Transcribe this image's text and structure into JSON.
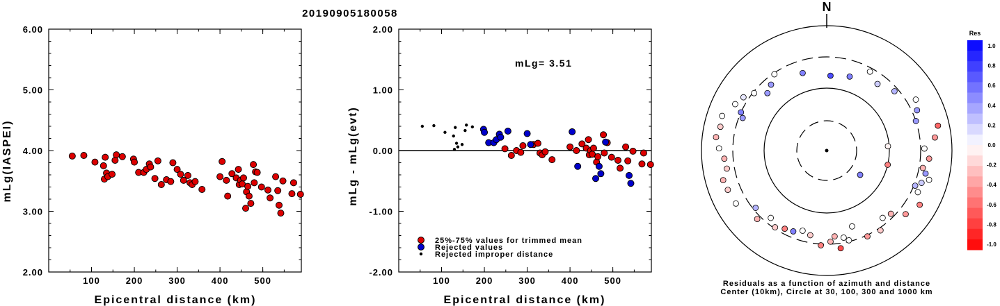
{
  "title": "20190905180058",
  "chart_data": [
    {
      "type": "scatter",
      "ylabel": "mLg(IASPEI)",
      "xlabel": "Epicentral distance (km)",
      "xlim": [
        0,
        590
      ],
      "ylim": [
        2.0,
        6.0
      ],
      "xticks": [
        "100",
        "200",
        "300",
        "400",
        "500"
      ],
      "yticks": [
        "2.00",
        "3.00",
        "4.00",
        "5.00",
        "6.00"
      ],
      "series": [
        {
          "color": "#dd0000",
          "points": [
            [
              55,
              3.91
            ],
            [
              82,
              3.92
            ],
            [
              108,
              3.81
            ],
            [
              128,
              3.75
            ],
            [
              130,
              3.53
            ],
            [
              132,
              3.89
            ],
            [
              135,
              3.63
            ],
            [
              138,
              3.57
            ],
            [
              148,
              3.61
            ],
            [
              155,
              3.84
            ],
            [
              158,
              3.93
            ],
            [
              172,
              3.9
            ],
            [
              198,
              3.86
            ],
            [
              200,
              3.81
            ],
            [
              210,
              3.64
            ],
            [
              222,
              3.64
            ],
            [
              228,
              3.69
            ],
            [
              235,
              3.78
            ],
            [
              238,
              3.73
            ],
            [
              248,
              3.54
            ],
            [
              255,
              3.83
            ],
            [
              263,
              3.44
            ],
            [
              275,
              3.52
            ],
            [
              285,
              3.49
            ],
            [
              290,
              3.8
            ],
            [
              300,
              3.69
            ],
            [
              308,
              3.61
            ],
            [
              315,
              3.51
            ],
            [
              325,
              3.59
            ],
            [
              330,
              3.47
            ],
            [
              335,
              3.44
            ],
            [
              342,
              3.49
            ],
            [
              358,
              3.36
            ],
            [
              400,
              3.57
            ],
            [
              405,
              3.82
            ],
            [
              415,
              3.51
            ],
            [
              418,
              3.25
            ],
            [
              428,
              3.62
            ],
            [
              438,
              3.55
            ],
            [
              443,
              3.69
            ],
            [
              445,
              3.44
            ],
            [
              448,
              3.51
            ],
            [
              452,
              3.45
            ],
            [
              455,
              3.55
            ],
            [
              460,
              3.05
            ],
            [
              462,
              3.32
            ],
            [
              465,
              3.41
            ],
            [
              468,
              3.25
            ],
            [
              472,
              3.13
            ],
            [
              478,
              3.77
            ],
            [
              480,
              3.47
            ],
            [
              483,
              3.65
            ],
            [
              487,
              3.64
            ],
            [
              497,
              3.4
            ],
            [
              512,
              3.35
            ],
            [
              517,
              3.22
            ],
            [
              530,
              3.57
            ],
            [
              535,
              3.34
            ],
            [
              538,
              3.1
            ],
            [
              542,
              2.97
            ],
            [
              547,
              3.5
            ],
            [
              568,
              3.29
            ],
            [
              572,
              3.47
            ],
            [
              588,
              3.28
            ]
          ]
        }
      ]
    },
    {
      "type": "scatter",
      "ylabel": "mLg - mLg(evt)",
      "xlabel": "Epicentral distance (km)",
      "xlim": [
        0,
        590
      ],
      "ylim": [
        -2.0,
        2.0
      ],
      "xticks": [
        "100",
        "200",
        "300",
        "400",
        "500"
      ],
      "yticks": [
        "-2.00",
        "-1.00",
        "0.00",
        "1.00",
        "2.00"
      ],
      "annotation": "mLg= 3.51",
      "series": [
        {
          "name": "25%-75% values for trimmed mean",
          "color": "#dd0000",
          "points": [
            [
              248,
              0.03
            ],
            [
              263,
              -0.08
            ],
            [
              275,
              0.0
            ],
            [
              285,
              -0.03
            ],
            [
              290,
              0.08
            ],
            [
              315,
              0.1
            ],
            [
              325,
              0.12
            ],
            [
              330,
              -0.04
            ],
            [
              335,
              -0.07
            ],
            [
              342,
              -0.02
            ],
            [
              358,
              -0.15
            ],
            [
              400,
              0.06
            ],
            [
              415,
              0.0
            ],
            [
              428,
              0.11
            ],
            [
              438,
              0.04
            ],
            [
              443,
              0.18
            ],
            [
              445,
              -0.07
            ],
            [
              448,
              0.0
            ],
            [
              452,
              -0.06
            ],
            [
              455,
              0.04
            ],
            [
              462,
              -0.19
            ],
            [
              465,
              -0.1
            ],
            [
              478,
              0.26
            ],
            [
              480,
              -0.04
            ],
            [
              487,
              0.13
            ],
            [
              497,
              -0.11
            ],
            [
              512,
              -0.16
            ],
            [
              517,
              -0.29
            ],
            [
              530,
              0.06
            ],
            [
              535,
              -0.17
            ],
            [
              547,
              -0.01
            ],
            [
              568,
              -0.22
            ],
            [
              572,
              -0.04
            ],
            [
              588,
              -0.23
            ]
          ]
        },
        {
          "name": "Rejected values",
          "color": "#0000cc",
          "points": [
            [
              198,
              0.35
            ],
            [
              200,
              0.3
            ],
            [
              210,
              0.13
            ],
            [
              222,
              0.13
            ],
            [
              228,
              0.18
            ],
            [
              235,
              0.27
            ],
            [
              238,
              0.22
            ],
            [
              255,
              0.32
            ],
            [
              300,
              0.28
            ],
            [
              308,
              0.1
            ],
            [
              405,
              0.31
            ],
            [
              418,
              -0.26
            ],
            [
              460,
              -0.46
            ],
            [
              468,
              -0.26
            ],
            [
              472,
              -0.38
            ],
            [
              483,
              0.14
            ],
            [
              538,
              -0.41
            ],
            [
              542,
              -0.54
            ]
          ]
        },
        {
          "name": "Rejected improper distance",
          "color": "#000000",
          "points": [
            [
              55,
              0.4
            ],
            [
              82,
              0.41
            ],
            [
              108,
              0.3
            ],
            [
              128,
              0.24
            ],
            [
              130,
              0.02
            ],
            [
              132,
              0.38
            ],
            [
              135,
              0.12
            ],
            [
              138,
              0.06
            ],
            [
              148,
              0.1
            ],
            [
              155,
              0.33
            ],
            [
              158,
              0.42
            ],
            [
              172,
              0.39
            ]
          ]
        }
      ],
      "legend": "bottom-left"
    }
  ],
  "polar": {
    "north_label": "N",
    "caption_line1": "Residuals as a function of azimuth and distance",
    "caption_line2": "Center (10km), Circle at 30, 100, 300 and 1000 km",
    "stations": [
      [
        0.05,
        0.6,
        0.7
      ],
      [
        1.5,
        0.49,
        -0.05
      ],
      [
        1.8,
        0.5,
        -0.5
      ],
      [
        2.2,
        0.33,
        0.5
      ],
      [
        -0.3,
        0.65,
        0.5
      ],
      [
        -0.6,
        0.74,
        0.0
      ],
      [
        -0.7,
        0.69,
        0.4
      ],
      [
        -0.8,
        0.66,
        0.4
      ],
      [
        -0.9,
        0.74,
        0.0
      ],
      [
        -1.0,
        0.79,
        0.1
      ],
      [
        -1.1,
        0.82,
        0.0
      ],
      [
        -1.15,
        0.75,
        0.5
      ],
      [
        -1.2,
        0.72,
        0.4
      ],
      [
        -1.25,
        0.88,
        0.0
      ],
      [
        -1.35,
        0.87,
        -0.2
      ],
      [
        -1.45,
        0.89,
        -0.3
      ],
      [
        -1.55,
        0.86,
        0.0
      ],
      [
        -1.65,
        0.82,
        -0.3
      ],
      [
        -1.75,
        0.81,
        -0.2
      ],
      [
        -1.85,
        0.86,
        -0.3
      ],
      [
        -1.95,
        0.85,
        -0.2
      ],
      [
        -2.1,
        0.84,
        0.0
      ],
      [
        -2.25,
        0.73,
        0.3
      ],
      [
        -2.35,
        0.78,
        -0.3
      ],
      [
        -2.45,
        0.7,
        0.0
      ],
      [
        -2.55,
        0.74,
        -0.2
      ],
      [
        -2.65,
        0.71,
        -0.5
      ],
      [
        -2.75,
        0.7,
        0.5
      ],
      [
        -2.85,
        0.67,
        0.0
      ],
      [
        -2.95,
        0.69,
        -0.2
      ],
      [
        3.1,
        0.73,
        -0.3
      ],
      [
        3.05,
        0.69,
        -0.3
      ],
      [
        -3.08,
        0.76,
        -0.5
      ],
      [
        3.0,
        0.79,
        -0.7
      ],
      [
        2.95,
        0.71,
        0.0
      ],
      [
        2.9,
        0.74,
        0.0
      ],
      [
        2.82,
        0.64,
        0.0
      ],
      [
        2.7,
        0.76,
        -0.4
      ],
      [
        2.55,
        0.77,
        -0.2
      ],
      [
        2.45,
        0.7,
        0.0
      ],
      [
        2.35,
        0.72,
        -0.3
      ],
      [
        2.25,
        0.81,
        -0.4
      ],
      [
        2.1,
        0.86,
        -0.5
      ],
      [
        2.0,
        0.8,
        0.0
      ],
      [
        1.95,
        0.76,
        0.3
      ],
      [
        1.9,
        0.8,
        0.2
      ],
      [
        1.85,
        0.85,
        0.0
      ],
      [
        1.8,
        0.81,
        0.4
      ],
      [
        1.75,
        0.78,
        -0.3
      ],
      [
        1.65,
        0.82,
        -0.4
      ],
      [
        1.55,
        0.78,
        0.0
      ],
      [
        1.45,
        0.87,
        -0.4
      ],
      [
        1.35,
        0.91,
        -0.6
      ],
      [
        1.25,
        0.75,
        0.4
      ],
      [
        1.15,
        0.79,
        0.4
      ],
      [
        1.05,
        0.82,
        0.0
      ],
      [
        0.85,
        0.72,
        0.3
      ],
      [
        0.65,
        0.67,
        0.2
      ],
      [
        0.5,
        0.72,
        0.0
      ],
      [
        0.3,
        0.62,
        0.5
      ]
    ]
  },
  "colorbar": {
    "title": "Res",
    "ticks": [
      "1.0",
      "0.8",
      "0.6",
      "0.4",
      "0.2",
      "0.0",
      "-0.2",
      "-0.4",
      "-0.6",
      "-0.8",
      "-1.0"
    ]
  }
}
